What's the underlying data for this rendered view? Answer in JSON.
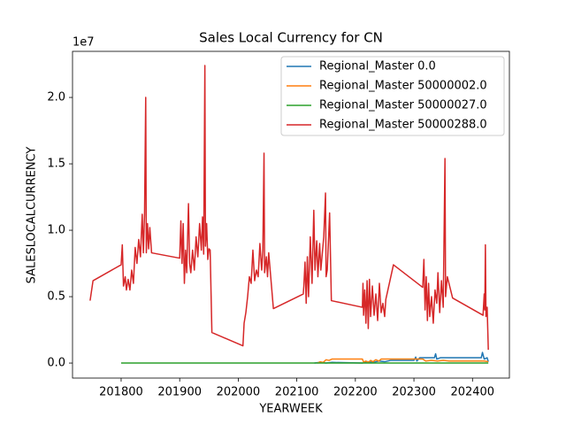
{
  "chart_data": {
    "type": "line",
    "title": "Sales Local Currency for CN",
    "x_label": "YEARWEEK",
    "y_label": "SALESLOCALCURRENCY",
    "y_offset_label": "1e7",
    "xlim": [
      201717,
      202463
    ],
    "ylim": [
      -1130000,
      23470000
    ],
    "xticks": [
      201800,
      201900,
      202000,
      202100,
      202200,
      202300,
      202400
    ],
    "yticks": [
      {
        "value": 0,
        "label": "0.0"
      },
      {
        "value": 5000000,
        "label": "0.5"
      },
      {
        "value": 10000000,
        "label": "1.0"
      },
      {
        "value": 15000000,
        "label": "1.5"
      },
      {
        "value": 20000000,
        "label": "2.0"
      }
    ],
    "legend": "upper right",
    "grid": false,
    "series": [
      {
        "name": "Regional_Master 0.0",
        "color": "#1f77b4",
        "x": [
          202130,
          202140,
          202150,
          202160,
          202212,
          202220,
          202230,
          202240,
          202250,
          202260,
          202300,
          202303,
          202305,
          202310,
          202320,
          202335,
          202337,
          202339,
          202345,
          202360,
          202400,
          202415,
          202417,
          202420,
          202425,
          202427
        ],
        "values": [
          0,
          50000,
          0,
          50000,
          0,
          100000,
          50000,
          150000,
          100000,
          200000,
          200000,
          450000,
          150000,
          400000,
          400000,
          400000,
          700000,
          300000,
          400000,
          400000,
          400000,
          400000,
          800000,
          300000,
          400000,
          100000
        ]
      },
      {
        "name": "Regional_Master 50000002.0",
        "color": "#ff7f0e",
        "x": [
          202135,
          202140,
          202145,
          202150,
          202155,
          202160,
          202212,
          202214,
          202218,
          202222,
          202226,
          202230,
          202235,
          202240,
          202244,
          202265,
          202315,
          202320,
          202330,
          202340,
          202350,
          202360,
          202400,
          202420,
          202427
        ],
        "values": [
          0,
          100000,
          50000,
          250000,
          200000,
          300000,
          300000,
          80000,
          150000,
          50000,
          200000,
          100000,
          250000,
          150000,
          300000,
          300000,
          300000,
          150000,
          200000,
          150000,
          200000,
          150000,
          150000,
          150000,
          100000
        ]
      },
      {
        "name": "Regional_Master 50000027.0",
        "color": "#2ca02c",
        "x": [
          201800,
          202427
        ],
        "values": [
          0,
          0
        ]
      },
      {
        "name": "Regional_Master 50000288.0",
        "color": "#d62728",
        "x": [
          201747,
          201752,
          201800,
          201802,
          201804,
          201807,
          201809,
          201812,
          201815,
          201818,
          201821,
          201824,
          201827,
          201830,
          201833,
          201836,
          201838,
          201840,
          201842,
          201843,
          201845,
          201847,
          201849,
          201852,
          201900,
          201902,
          201904,
          201906,
          201908,
          201910,
          201912,
          201915,
          201917,
          201919,
          201922,
          201925,
          201928,
          201931,
          201934,
          201937,
          201939,
          201941,
          201943,
          201944,
          201946,
          201948,
          201950,
          201952,
          201955,
          202008,
          202010,
          202013,
          202016,
          202019,
          202022,
          202025,
          202028,
          202031,
          202034,
          202037,
          202040,
          202042,
          202044,
          202045,
          202048,
          202050,
          202052,
          202060,
          202111,
          202112,
          202114,
          202116,
          202118,
          202120,
          202123,
          202126,
          202129,
          202131,
          202134,
          202136,
          202139,
          202141,
          202144,
          202146,
          202149,
          202150,
          202152,
          202156,
          202159,
          202212,
          202213,
          202214,
          202216,
          202218,
          202220,
          202222,
          202224,
          202226,
          202229,
          202232,
          202235,
          202238,
          202241,
          202244,
          202247,
          202250,
          202252,
          202265,
          202315,
          202317,
          202319,
          202321,
          202323,
          202325,
          202327,
          202330,
          202333,
          202336,
          202339,
          202341,
          202344,
          202347,
          202350,
          202353,
          202354,
          202357,
          202366,
          202418,
          202420,
          202421,
          202422,
          202423,
          202425,
          202427
        ],
        "values": [
          4700000,
          6200000,
          7400000,
          8900000,
          5800000,
          6500000,
          5500000,
          6300000,
          5500000,
          7000000,
          6000000,
          8700000,
          7500000,
          9300000,
          8000000,
          11200000,
          8300000,
          11200000,
          20000000,
          8300000,
          10500000,
          8600000,
          10200000,
          8300000,
          7900000,
          10700000,
          7500000,
          10500000,
          6000000,
          8500000,
          6800000,
          12000000,
          7500000,
          6800000,
          8500000,
          7000000,
          9500000,
          8000000,
          10500000,
          8500000,
          11000000,
          8200000,
          22400000,
          8800000,
          10500000,
          7800000,
          8600000,
          8500000,
          2300000,
          1300000,
          3000000,
          3800000,
          5000000,
          6500000,
          6000000,
          8500000,
          6200000,
          7000000,
          6500000,
          9000000,
          7000000,
          8500000,
          15800000,
          6800000,
          8000000,
          6500000,
          8300000,
          4100000,
          5200000,
          5800000,
          7600000,
          4500000,
          8000000,
          5000000,
          9500000,
          6000000,
          11500000,
          7000000,
          9200000,
          6500000,
          9000000,
          7000000,
          8500000,
          9500000,
          12800000,
          6500000,
          7000000,
          11300000,
          4700000,
          4200000,
          6000000,
          3600000,
          5500000,
          3000000,
          6200000,
          2600000,
          6300000,
          3500000,
          5800000,
          3600000,
          5200000,
          3200000,
          6000000,
          3800000,
          4500000,
          3500000,
          4800000,
          7400000,
          5700000,
          7800000,
          4000000,
          6500000,
          3200000,
          6000000,
          3500000,
          5000000,
          3000000,
          5500000,
          4500000,
          6800000,
          3800000,
          6200000,
          4200000,
          15400000,
          5000000,
          6500000,
          4900000,
          3600000,
          5200000,
          4000000,
          8900000,
          3500000,
          4200000,
          1000000
        ]
      }
    ]
  }
}
